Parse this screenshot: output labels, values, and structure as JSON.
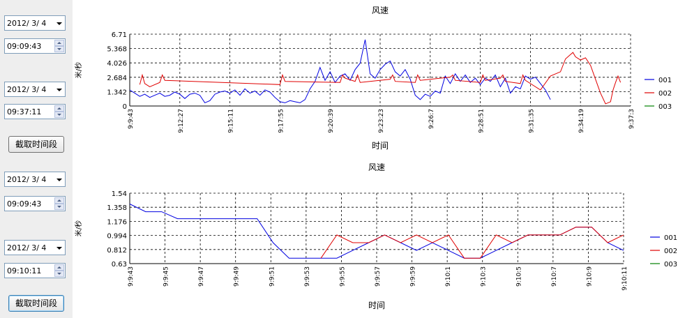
{
  "controls": {
    "group1": {
      "start_date": "2012/ 3/ 4",
      "start_time": "09:09:43",
      "end_date": "2012/ 3/ 4",
      "end_time": "09:37:11",
      "button_label": "截取时间段"
    },
    "group2": {
      "start_date": "2012/ 3/ 4",
      "start_time": "09:09:43",
      "end_date": "2012/ 3/ 4",
      "end_time": "09:10:11",
      "button_label": "截取时间段"
    }
  },
  "colors": {
    "s001": "#0000e0",
    "s002": "#e00000",
    "s003": "#008000"
  },
  "chart_data": [
    {
      "type": "line",
      "title": "风速",
      "xlabel": "时间",
      "ylabel": "米/秒",
      "ylim": [
        0,
        6.71
      ],
      "yticks": [
        "0",
        "1.342",
        "2.684",
        "4.026",
        "5.368",
        "6.71"
      ],
      "x_tick_labels": [
        "9:9:43",
        "9:12:27",
        "9:15:11",
        "9:17:55",
        "9:20:39",
        "9:23:23",
        "9:26:7",
        "9:28:51",
        "9:31:35",
        "9:34:19",
        "9:37:3"
      ],
      "grid": true,
      "legend": "right",
      "series": [
        {
          "name": "001",
          "color_key": "s001",
          "points": [
            [
              0,
              1.5
            ],
            [
              0.01,
              1.2
            ],
            [
              0.02,
              0.9
            ],
            [
              0.03,
              1.1
            ],
            [
              0.04,
              0.8
            ],
            [
              0.05,
              1.0
            ],
            [
              0.06,
              1.2
            ],
            [
              0.07,
              0.9
            ],
            [
              0.08,
              1.0
            ],
            [
              0.09,
              1.3
            ],
            [
              0.1,
              1.1
            ],
            [
              0.11,
              0.7
            ],
            [
              0.12,
              1.1
            ],
            [
              0.13,
              1.2
            ],
            [
              0.14,
              1.0
            ],
            [
              0.15,
              0.3
            ],
            [
              0.16,
              0.5
            ],
            [
              0.17,
              1.1
            ],
            [
              0.18,
              1.3
            ],
            [
              0.19,
              1.4
            ],
            [
              0.2,
              1.2
            ],
            [
              0.21,
              1.5
            ],
            [
              0.22,
              1.0
            ],
            [
              0.23,
              1.6
            ],
            [
              0.24,
              1.2
            ],
            [
              0.25,
              1.4
            ],
            [
              0.26,
              1.0
            ],
            [
              0.27,
              1.5
            ],
            [
              0.28,
              1.3
            ],
            [
              0.29,
              0.8
            ],
            [
              0.3,
              0.4
            ],
            [
              0.31,
              0.3
            ],
            [
              0.32,
              0.5
            ],
            [
              0.33,
              0.4
            ],
            [
              0.34,
              0.3
            ],
            [
              0.35,
              0.6
            ],
            [
              0.36,
              1.6
            ],
            [
              0.37,
              2.3
            ],
            [
              0.38,
              3.6
            ],
            [
              0.39,
              2.4
            ],
            [
              0.4,
              3.2
            ],
            [
              0.41,
              2.2
            ],
            [
              0.42,
              2.8
            ],
            [
              0.43,
              3.0
            ],
            [
              0.44,
              2.4
            ],
            [
              0.45,
              3.4
            ],
            [
              0.46,
              4.0
            ],
            [
              0.47,
              6.2
            ],
            [
              0.48,
              3.0
            ],
            [
              0.49,
              2.6
            ],
            [
              0.5,
              3.4
            ],
            [
              0.51,
              3.9
            ],
            [
              0.52,
              4.2
            ],
            [
              0.53,
              3.2
            ],
            [
              0.54,
              2.8
            ],
            [
              0.55,
              3.4
            ],
            [
              0.56,
              2.5
            ],
            [
              0.57,
              1.0
            ],
            [
              0.58,
              0.6
            ],
            [
              0.59,
              1.1
            ],
            [
              0.6,
              0.9
            ],
            [
              0.61,
              1.4
            ],
            [
              0.62,
              1.2
            ],
            [
              0.63,
              2.8
            ],
            [
              0.64,
              2.1
            ],
            [
              0.65,
              3.0
            ],
            [
              0.66,
              2.3
            ],
            [
              0.67,
              2.9
            ],
            [
              0.68,
              2.2
            ],
            [
              0.69,
              2.6
            ],
            [
              0.7,
              2.0
            ],
            [
              0.71,
              2.6
            ],
            [
              0.72,
              2.3
            ],
            [
              0.73,
              2.9
            ],
            [
              0.74,
              1.8
            ],
            [
              0.75,
              2.6
            ],
            [
              0.76,
              1.2
            ],
            [
              0.77,
              1.8
            ],
            [
              0.78,
              1.6
            ],
            [
              0.79,
              2.8
            ],
            [
              0.8,
              2.5
            ],
            [
              0.81,
              2.7
            ],
            [
              0.82,
              2.1
            ],
            [
              0.83,
              1.5
            ],
            [
              0.84,
              0.6
            ]
          ]
        },
        {
          "name": "002",
          "color_key": "s002",
          "points": [
            [
              0.02,
              2.0
            ],
            [
              0.025,
              2.9
            ],
            [
              0.03,
              2.1
            ],
            [
              0.04,
              1.8
            ],
            [
              0.06,
              2.2
            ],
            [
              0.065,
              2.9
            ],
            [
              0.07,
              2.4
            ],
            [
              0.3,
              2.0
            ],
            [
              0.305,
              2.9
            ],
            [
              0.31,
              2.3
            ],
            [
              0.42,
              2.2
            ],
            [
              0.425,
              2.9
            ],
            [
              0.43,
              2.6
            ],
            [
              0.45,
              2.3
            ],
            [
              0.455,
              2.9
            ],
            [
              0.46,
              2.2
            ],
            [
              0.52,
              2.5
            ],
            [
              0.525,
              2.9
            ],
            [
              0.53,
              2.3
            ],
            [
              0.57,
              2.2
            ],
            [
              0.575,
              2.9
            ],
            [
              0.58,
              2.4
            ],
            [
              0.64,
              2.7
            ],
            [
              0.645,
              2.9
            ],
            [
              0.65,
              2.4
            ],
            [
              0.7,
              2.2
            ],
            [
              0.705,
              2.9
            ],
            [
              0.71,
              2.4
            ],
            [
              0.74,
              2.6
            ],
            [
              0.745,
              2.9
            ],
            [
              0.75,
              2.3
            ],
            [
              0.78,
              2.1
            ],
            [
              0.785,
              2.9
            ],
            [
              0.79,
              2.4
            ],
            [
              0.82,
              1.5
            ],
            [
              0.84,
              2.8
            ],
            [
              0.86,
              3.2
            ],
            [
              0.87,
              4.4
            ],
            [
              0.88,
              4.8
            ],
            [
              0.885,
              5.0
            ],
            [
              0.89,
              4.6
            ],
            [
              0.9,
              4.3
            ],
            [
              0.91,
              4.5
            ],
            [
              0.92,
              3.8
            ],
            [
              0.93,
              2.5
            ],
            [
              0.94,
              1.2
            ],
            [
              0.95,
              0.2
            ],
            [
              0.96,
              0.4
            ],
            [
              0.965,
              1.5
            ],
            [
              0.97,
              2.2
            ],
            [
              0.975,
              2.8
            ],
            [
              0.98,
              2.2
            ]
          ]
        },
        {
          "name": "003",
          "color_key": "s003",
          "points": []
        }
      ]
    },
    {
      "type": "line",
      "title": "风速",
      "xlabel": "时间",
      "ylabel": "米/秒",
      "ylim": [
        0.63,
        1.54
      ],
      "yticks": [
        "0.63",
        "0.812",
        "0.994",
        "1.176",
        "1.358",
        "1.54"
      ],
      "x_tick_labels": [
        "9:9:43",
        "9:9:45",
        "9:9:47",
        "9:9:49",
        "9:9:51",
        "9:9:53",
        "9:9:55",
        "9:9:57",
        "9:9:59",
        "9:10:1",
        "9:10:3",
        "9:10:5",
        "9:10:7",
        "9:10:9",
        "9:10:11"
      ],
      "grid": true,
      "legend": "right",
      "series": [
        {
          "name": "001",
          "color_key": "s001",
          "points": [
            [
              0,
              1.4
            ],
            [
              1,
              1.3
            ],
            [
              2,
              1.3
            ],
            [
              3,
              1.21
            ],
            [
              4,
              1.21
            ],
            [
              5,
              1.21
            ],
            [
              6,
              1.21
            ],
            [
              7,
              1.21
            ],
            [
              8,
              1.21
            ],
            [
              9,
              0.9
            ],
            [
              10,
              0.7
            ],
            [
              11,
              0.7
            ],
            [
              12,
              0.7
            ],
            [
              13,
              0.7
            ],
            [
              14,
              0.8
            ],
            [
              15,
              0.9
            ],
            [
              16,
              1.0
            ],
            [
              17,
              0.9
            ],
            [
              18,
              0.8
            ],
            [
              19,
              0.9
            ],
            [
              20,
              0.8
            ],
            [
              21,
              0.7
            ],
            [
              22,
              0.7
            ],
            [
              23,
              0.8
            ],
            [
              24,
              0.9
            ],
            [
              25,
              1.0
            ],
            [
              26,
              1.0
            ],
            [
              27,
              1.0
            ],
            [
              28,
              1.1
            ],
            [
              29,
              1.1
            ],
            [
              30,
              0.9
            ],
            [
              31,
              0.8
            ]
          ]
        },
        {
          "name": "002",
          "color_key": "s002",
          "points": [
            [
              12,
              0.7
            ],
            [
              13,
              1.0
            ],
            [
              14,
              0.9
            ],
            [
              15,
              0.9
            ],
            [
              16,
              1.0
            ],
            [
              17,
              0.9
            ],
            [
              18,
              1.0
            ],
            [
              19,
              0.9
            ],
            [
              20,
              1.0
            ],
            [
              21,
              0.7
            ],
            [
              22,
              0.7
            ],
            [
              23,
              1.0
            ],
            [
              24,
              0.9
            ],
            [
              25,
              1.0
            ],
            [
              26,
              1.0
            ],
            [
              27,
              1.0
            ],
            [
              28,
              1.1
            ],
            [
              29,
              1.1
            ],
            [
              30,
              0.9
            ],
            [
              31,
              1.0
            ]
          ]
        },
        {
          "name": "003",
          "color_key": "s003",
          "points": []
        }
      ]
    }
  ]
}
